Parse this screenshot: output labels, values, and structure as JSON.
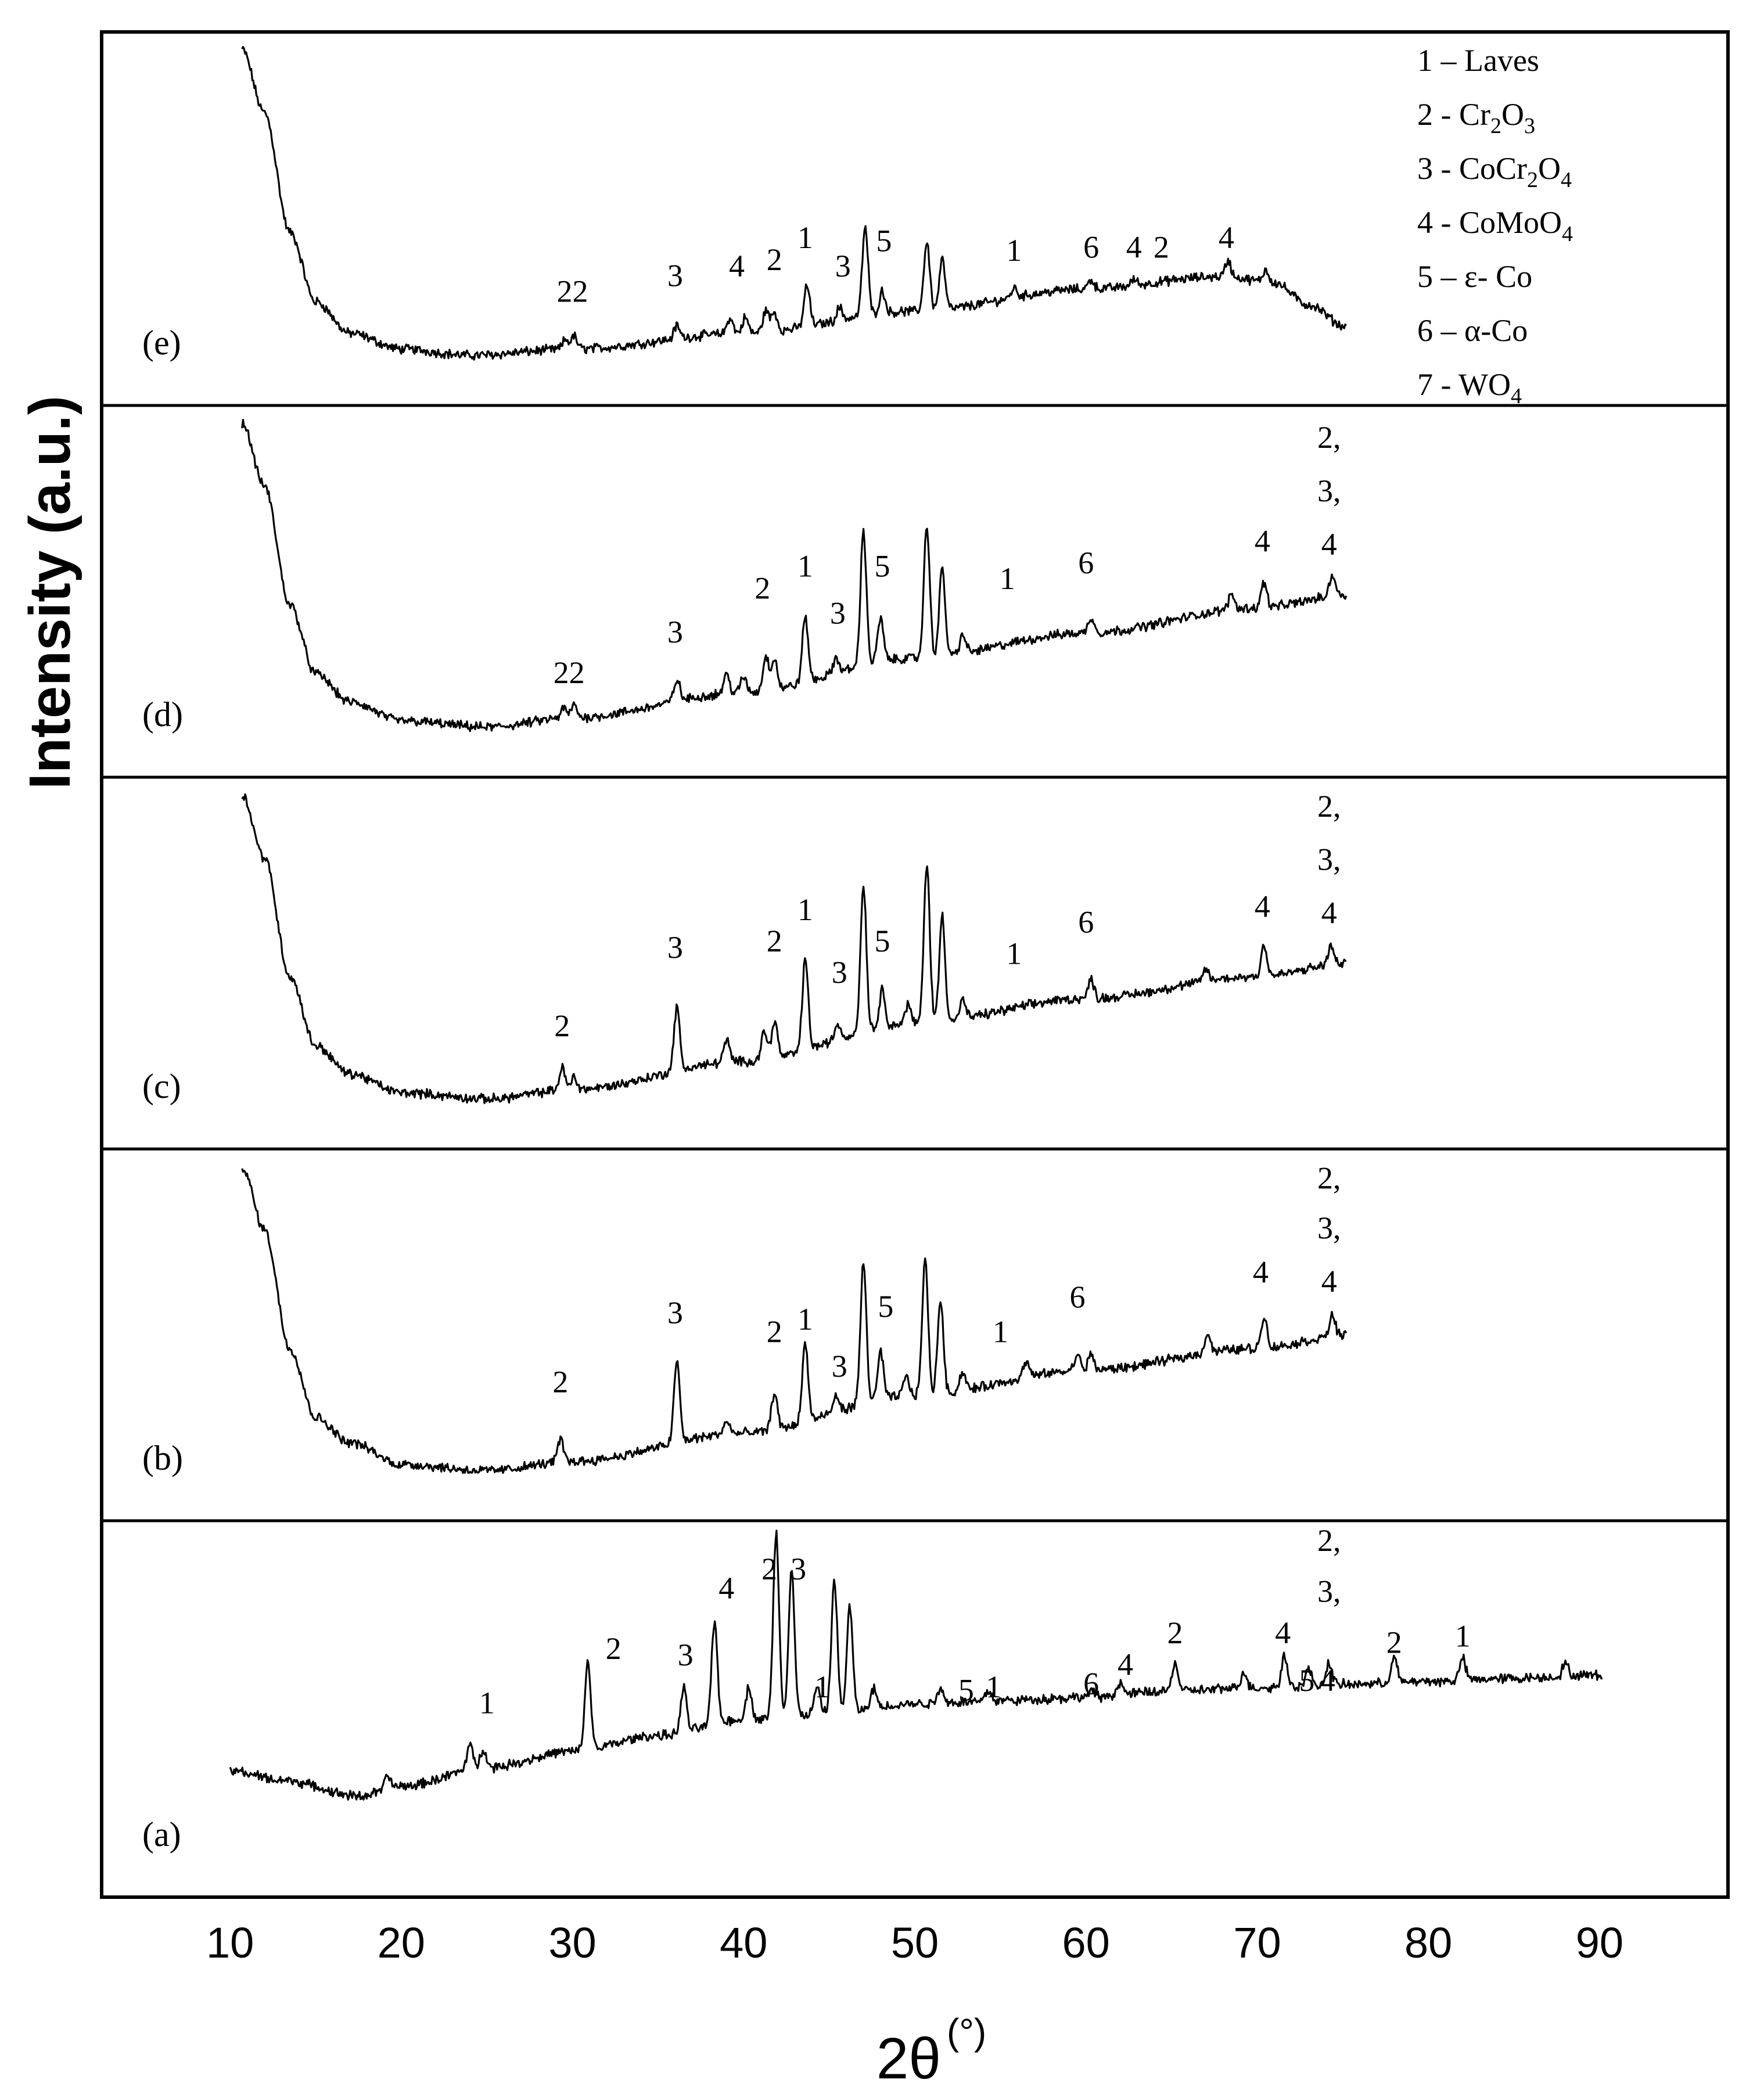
{
  "chart_data": {
    "type": "line",
    "title": "",
    "xlabel": "2θ",
    "xlabel_unit": "(°)",
    "ylabel": "Intensity (a.u.)",
    "xlim": [
      2.5,
      97.5
    ],
    "xticks": [
      "10",
      "20",
      "30",
      "40",
      "50",
      "60",
      "70",
      "80",
      "90"
    ],
    "legend": {
      "position": "top-right",
      "entries": [
        {
          "num": "1",
          "sep": " – ",
          "name": "Laves",
          "parts": [
            {
              "t": "Laves"
            }
          ]
        },
        {
          "num": "2",
          "sep": " - ",
          "name": "Cr2O3",
          "parts": [
            {
              "t": "Cr"
            },
            {
              "t": "2",
              "sub": true
            },
            {
              "t": "O"
            },
            {
              "t": "3",
              "sub": true
            }
          ]
        },
        {
          "num": "3",
          "sep": " - ",
          "name": "CoCr2O4",
          "parts": [
            {
              "t": "CoCr"
            },
            {
              "t": "2",
              "sub": true
            },
            {
              "t": "O"
            },
            {
              "t": "4",
              "sub": true
            }
          ]
        },
        {
          "num": "4",
          "sep": " - ",
          "name": "CoMoO4",
          "parts": [
            {
              "t": "CoMoO"
            },
            {
              "t": "4",
              "sub": true
            }
          ]
        },
        {
          "num": "5",
          "sep": " – ",
          "name": "ε- Co",
          "parts": [
            {
              "t": "ε- Co"
            }
          ]
        },
        {
          "num": "6",
          "sep": " – ",
          "name": "α-Co",
          "parts": [
            {
              "t": "α-Co"
            }
          ]
        },
        {
          "num": "7",
          "sep": " - ",
          "name": "WO4",
          "parts": [
            {
              "t": "WO"
            },
            {
              "t": "4",
              "sub": true
            }
          ]
        }
      ]
    },
    "panels": [
      {
        "id": "e",
        "label": "(e)",
        "x_range": [
          10.7,
          75.2
        ],
        "baseline": [
          [
            10.7,
            1.0
          ],
          [
            12.0,
            0.8
          ],
          [
            13.5,
            0.42
          ],
          [
            15.0,
            0.2
          ],
          [
            17.0,
            0.1
          ],
          [
            20.0,
            0.05
          ],
          [
            24.0,
            0.03
          ],
          [
            30.0,
            0.05
          ],
          [
            40.0,
            0.1
          ],
          [
            50.0,
            0.17
          ],
          [
            60.0,
            0.24
          ],
          [
            68.0,
            0.28
          ],
          [
            71.0,
            0.26
          ],
          [
            73.0,
            0.19
          ],
          [
            75.2,
            0.12
          ]
        ],
        "peaks": [
          [
            29.6,
            0.03
          ],
          [
            30.1,
            0.04
          ],
          [
            36.1,
            0.04
          ],
          [
            39.2,
            0.05
          ],
          [
            40.1,
            0.05
          ],
          [
            41.3,
            0.07
          ],
          [
            41.8,
            0.06
          ],
          [
            43.7,
            0.13
          ],
          [
            45.6,
            0.04
          ],
          [
            47.1,
            0.28
          ],
          [
            48.1,
            0.07
          ],
          [
            50.7,
            0.22
          ],
          [
            51.6,
            0.16
          ],
          [
            55.8,
            0.03
          ],
          [
            60.3,
            0.03
          ],
          [
            62.8,
            0.02
          ],
          [
            68.3,
            0.05
          ],
          [
            70.5,
            0.04
          ]
        ],
        "annotations": [
          {
            "text": "22",
            "x": 30.0,
            "y": 0.2
          },
          {
            "text": "3",
            "x": 36.0,
            "y": 0.25
          },
          {
            "text": "4",
            "x": 39.6,
            "y": 0.28
          },
          {
            "text": "2",
            "x": 41.8,
            "y": 0.3
          },
          {
            "text": "1",
            "x": 43.6,
            "y": 0.37
          },
          {
            "text": "3",
            "x": 45.8,
            "y": 0.28
          },
          {
            "text": "5",
            "x": 48.2,
            "y": 0.36
          },
          {
            "text": "1",
            "x": 55.8,
            "y": 0.33
          },
          {
            "text": "6",
            "x": 60.3,
            "y": 0.34
          },
          {
            "text": "4",
            "x": 62.8,
            "y": 0.34
          },
          {
            "text": "2",
            "x": 64.4,
            "y": 0.34
          },
          {
            "text": "4",
            "x": 68.2,
            "y": 0.37
          }
        ]
      },
      {
        "id": "d",
        "label": "(d)",
        "x_range": [
          10.7,
          75.2
        ],
        "baseline": [
          [
            10.7,
            1.0
          ],
          [
            12.0,
            0.8
          ],
          [
            13.5,
            0.42
          ],
          [
            15.0,
            0.2
          ],
          [
            17.0,
            0.11
          ],
          [
            20.0,
            0.05
          ],
          [
            25.0,
            0.03
          ],
          [
            30.0,
            0.06
          ],
          [
            40.0,
            0.14
          ],
          [
            50.0,
            0.25
          ],
          [
            60.0,
            0.33
          ],
          [
            70.0,
            0.41
          ],
          [
            75.2,
            0.45
          ]
        ],
        "peaks": [
          [
            29.5,
            0.03
          ],
          [
            30.1,
            0.04
          ],
          [
            36.1,
            0.07
          ],
          [
            39.0,
            0.06
          ],
          [
            40.0,
            0.05
          ],
          [
            41.3,
            0.11
          ],
          [
            41.8,
            0.1
          ],
          [
            43.6,
            0.21
          ],
          [
            45.4,
            0.05
          ],
          [
            47.0,
            0.43
          ],
          [
            48.0,
            0.14
          ],
          [
            50.7,
            0.42
          ],
          [
            51.6,
            0.28
          ],
          [
            52.8,
            0.06
          ],
          [
            60.3,
            0.05
          ],
          [
            68.5,
            0.05
          ],
          [
            70.4,
            0.08
          ],
          [
            74.4,
            0.07
          ]
        ],
        "annotations": [
          {
            "text": "22",
            "x": 29.8,
            "y": 0.17
          },
          {
            "text": "3",
            "x": 36.0,
            "y": 0.3
          },
          {
            "text": "2",
            "x": 41.1,
            "y": 0.44
          },
          {
            "text": "1",
            "x": 43.6,
            "y": 0.51
          },
          {
            "text": "3",
            "x": 45.5,
            "y": 0.36
          },
          {
            "text": "5",
            "x": 48.1,
            "y": 0.51
          },
          {
            "text": "1",
            "x": 55.4,
            "y": 0.47
          },
          {
            "text": "6",
            "x": 60.0,
            "y": 0.52
          },
          {
            "text": "4",
            "x": 70.3,
            "y": 0.59
          },
          {
            "text": "2,",
            "x": 74.2,
            "y": 0.92
          },
          {
            "text": "3,",
            "x": 74.2,
            "y": 0.75
          },
          {
            "text": "4",
            "x": 74.2,
            "y": 0.58
          }
        ]
      },
      {
        "id": "c",
        "label": "(c)",
        "x_range": [
          10.7,
          75.2
        ],
        "baseline": [
          [
            10.7,
            1.0
          ],
          [
            12.0,
            0.8
          ],
          [
            13.5,
            0.42
          ],
          [
            15.0,
            0.2
          ],
          [
            17.0,
            0.11
          ],
          [
            20.0,
            0.05
          ],
          [
            25.0,
            0.03
          ],
          [
            30.0,
            0.06
          ],
          [
            40.0,
            0.15
          ],
          [
            50.0,
            0.27
          ],
          [
            60.0,
            0.35
          ],
          [
            70.0,
            0.42
          ],
          [
            75.2,
            0.46
          ]
        ],
        "peaks": [
          [
            29.4,
            0.07
          ],
          [
            30.1,
            0.04
          ],
          [
            36.1,
            0.2
          ],
          [
            39.0,
            0.07
          ],
          [
            41.2,
            0.09
          ],
          [
            41.8,
            0.12
          ],
          [
            43.6,
            0.29
          ],
          [
            45.5,
            0.05
          ],
          [
            47.0,
            0.47
          ],
          [
            48.1,
            0.12
          ],
          [
            49.6,
            0.06
          ],
          [
            50.7,
            0.51
          ],
          [
            51.6,
            0.34
          ],
          [
            52.8,
            0.06
          ],
          [
            60.3,
            0.06
          ],
          [
            67.0,
            0.04
          ],
          [
            70.4,
            0.1
          ],
          [
            74.3,
            0.06
          ]
        ],
        "annotations": [
          {
            "text": "2",
            "x": 29.4,
            "y": 0.23
          },
          {
            "text": "3",
            "x": 36.0,
            "y": 0.48
          },
          {
            "text": "2",
            "x": 41.8,
            "y": 0.5
          },
          {
            "text": "1",
            "x": 43.6,
            "y": 0.6
          },
          {
            "text": "3",
            "x": 45.6,
            "y": 0.4
          },
          {
            "text": "5",
            "x": 48.1,
            "y": 0.5
          },
          {
            "text": "1",
            "x": 55.8,
            "y": 0.46
          },
          {
            "text": "6",
            "x": 60.0,
            "y": 0.56
          },
          {
            "text": "4",
            "x": 70.3,
            "y": 0.61
          },
          {
            "text": "2,",
            "x": 74.2,
            "y": 0.93
          },
          {
            "text": "3,",
            "x": 74.2,
            "y": 0.76
          },
          {
            "text": "4",
            "x": 74.2,
            "y": 0.59
          }
        ]
      },
      {
        "id": "b",
        "label": "(b)",
        "x_range": [
          10.7,
          75.2
        ],
        "baseline": [
          [
            10.7,
            1.0
          ],
          [
            12.0,
            0.8
          ],
          [
            13.5,
            0.42
          ],
          [
            15.0,
            0.2
          ],
          [
            17.0,
            0.12
          ],
          [
            20.0,
            0.05
          ],
          [
            25.0,
            0.03
          ],
          [
            30.0,
            0.06
          ],
          [
            40.0,
            0.15
          ],
          [
            50.0,
            0.27
          ],
          [
            60.0,
            0.35
          ],
          [
            70.0,
            0.42
          ],
          [
            75.2,
            0.46
          ]
        ],
        "peaks": [
          [
            29.3,
            0.07
          ],
          [
            36.1,
            0.26
          ],
          [
            39.0,
            0.04
          ],
          [
            41.8,
            0.12
          ],
          [
            43.6,
            0.25
          ],
          [
            45.4,
            0.05
          ],
          [
            47.0,
            0.45
          ],
          [
            48.0,
            0.15
          ],
          [
            49.5,
            0.06
          ],
          [
            50.6,
            0.43
          ],
          [
            51.5,
            0.3
          ],
          [
            52.8,
            0.06
          ],
          [
            56.5,
            0.05
          ],
          [
            59.5,
            0.05
          ],
          [
            60.3,
            0.05
          ],
          [
            67.1,
            0.06
          ],
          [
            70.4,
            0.1
          ],
          [
            74.4,
            0.07
          ]
        ],
        "annotations": [
          {
            "text": "2",
            "x": 29.3,
            "y": 0.28
          },
          {
            "text": "3",
            "x": 36.0,
            "y": 0.5
          },
          {
            "text": "2",
            "x": 41.8,
            "y": 0.44
          },
          {
            "text": "1",
            "x": 43.6,
            "y": 0.48
          },
          {
            "text": "3",
            "x": 45.6,
            "y": 0.33
          },
          {
            "text": "5",
            "x": 48.3,
            "y": 0.52
          },
          {
            "text": "1",
            "x": 55.0,
            "y": 0.44
          },
          {
            "text": "6",
            "x": 59.5,
            "y": 0.55
          },
          {
            "text": "4",
            "x": 70.2,
            "y": 0.63
          },
          {
            "text": "2,",
            "x": 74.2,
            "y": 0.93
          },
          {
            "text": "3,",
            "x": 74.2,
            "y": 0.77
          },
          {
            "text": "4",
            "x": 74.2,
            "y": 0.6
          }
        ]
      },
      {
        "id": "a",
        "label": "(a)",
        "x_range": [
          10.0,
          90.2
        ],
        "baseline": [
          [
            10.0,
            0.27
          ],
          [
            13.0,
            0.24
          ],
          [
            17.5,
            0.19
          ],
          [
            20.0,
            0.22
          ],
          [
            25.0,
            0.28
          ],
          [
            30.0,
            0.33
          ],
          [
            35.0,
            0.38
          ],
          [
            40.0,
            0.43
          ],
          [
            45.0,
            0.45
          ],
          [
            50.0,
            0.48
          ],
          [
            55.0,
            0.49
          ],
          [
            60.0,
            0.5
          ],
          [
            65.0,
            0.52
          ],
          [
            70.0,
            0.53
          ],
          [
            75.0,
            0.54
          ],
          [
            80.0,
            0.55
          ],
          [
            85.0,
            0.56
          ],
          [
            90.2,
            0.57
          ]
        ],
        "peaks": [
          [
            19.2,
            0.04
          ],
          [
            24.0,
            0.08
          ],
          [
            24.8,
            0.06
          ],
          [
            30.9,
            0.28
          ],
          [
            36.5,
            0.14
          ],
          [
            38.3,
            0.32
          ],
          [
            40.3,
            0.1
          ],
          [
            41.9,
            0.58
          ],
          [
            42.8,
            0.46
          ],
          [
            44.3,
            0.08
          ],
          [
            45.3,
            0.42
          ],
          [
            46.2,
            0.33
          ],
          [
            47.6,
            0.06
          ],
          [
            51.5,
            0.05
          ],
          [
            54.3,
            0.03
          ],
          [
            60.3,
            0.02
          ],
          [
            62.0,
            0.04
          ],
          [
            65.2,
            0.09
          ],
          [
            69.2,
            0.05
          ],
          [
            71.6,
            0.1
          ],
          [
            73.0,
            0.05
          ],
          [
            74.2,
            0.07
          ],
          [
            78.0,
            0.08
          ],
          [
            82.0,
            0.07
          ],
          [
            88.0,
            0.04
          ]
        ],
        "annotations": [
          {
            "text": "1",
            "x": 25.0,
            "y": 0.45
          },
          {
            "text": "2",
            "x": 32.4,
            "y": 0.62
          },
          {
            "text": "3",
            "x": 36.6,
            "y": 0.6
          },
          {
            "text": "4",
            "x": 39.0,
            "y": 0.81
          },
          {
            "text": "2",
            "x": 41.5,
            "y": 0.87
          },
          {
            "text": "3",
            "x": 43.2,
            "y": 0.87
          },
          {
            "text": "1",
            "x": 44.6,
            "y": 0.5
          },
          {
            "text": "5",
            "x": 53.0,
            "y": 0.49
          },
          {
            "text": "1",
            "x": 54.6,
            "y": 0.5
          },
          {
            "text": "6",
            "x": 60.3,
            "y": 0.51
          },
          {
            "text": "4",
            "x": 62.3,
            "y": 0.57
          },
          {
            "text": "2",
            "x": 65.2,
            "y": 0.67
          },
          {
            "text": "4",
            "x": 71.5,
            "y": 0.67
          },
          {
            "text": "5",
            "x": 72.9,
            "y": 0.52
          },
          {
            "text": "4",
            "x": 74.1,
            "y": 0.52
          },
          {
            "text": "2,",
            "x": 74.2,
            "y": 0.96
          },
          {
            "text": "3,",
            "x": 74.2,
            "y": 0.8
          },
          {
            "text": "2",
            "x": 78.0,
            "y": 0.64
          },
          {
            "text": "1",
            "x": 82.0,
            "y": 0.66
          }
        ]
      }
    ]
  }
}
